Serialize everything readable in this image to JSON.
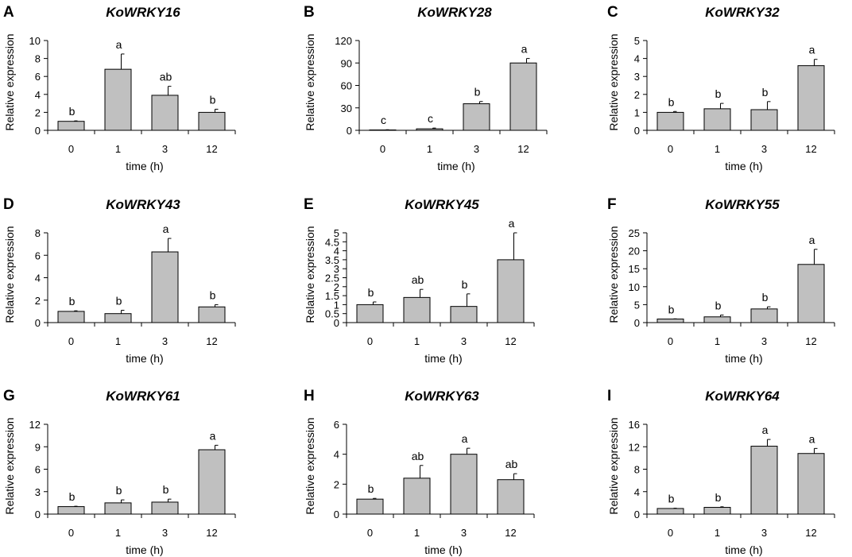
{
  "chart_data": [
    {
      "type": "bar",
      "letter": "A",
      "title": "KoWRKY16",
      "categories": [
        "0",
        "1",
        "3",
        "12"
      ],
      "values": [
        1.0,
        6.8,
        3.9,
        2.0
      ],
      "errors": [
        0.05,
        1.7,
        1.0,
        0.35
      ],
      "labels": [
        "b",
        "a",
        "ab",
        "b"
      ],
      "ylim": [
        0,
        10
      ],
      "yticks": [
        "0",
        "2",
        "4",
        "6",
        "8",
        "10"
      ],
      "xlabel": "time (h)",
      "ylabel": "Relative expression"
    },
    {
      "type": "bar",
      "letter": "B",
      "title": "KoWRKY28",
      "categories": [
        "0",
        "1",
        "3",
        "12"
      ],
      "values": [
        0.5,
        2.0,
        35.5,
        90.0
      ],
      "errors": [
        0.3,
        1.0,
        3.0,
        6.0
      ],
      "labels": [
        "c",
        "c",
        "b",
        "a"
      ],
      "ylim": [
        0,
        120
      ],
      "yticks": [
        "0",
        "30",
        "60",
        "90",
        "120"
      ],
      "xlabel": "time (h)",
      "ylabel": "Relative expression"
    },
    {
      "type": "bar",
      "letter": "C",
      "title": "KoWRKY32",
      "categories": [
        "0",
        "1",
        "3",
        "12"
      ],
      "values": [
        1.0,
        1.2,
        1.15,
        3.6
      ],
      "errors": [
        0.05,
        0.3,
        0.45,
        0.35
      ],
      "labels": [
        "b",
        "b",
        "b",
        "a"
      ],
      "ylim": [
        0,
        5
      ],
      "yticks": [
        "0",
        "1",
        "2",
        "3",
        "4",
        "5"
      ],
      "xlabel": "time (h)",
      "ylabel": "Relative expression"
    },
    {
      "type": "bar",
      "letter": "D",
      "title": "KoWRKY43",
      "categories": [
        "0",
        "1",
        "3",
        "12"
      ],
      "values": [
        1.0,
        0.8,
        6.3,
        1.4
      ],
      "errors": [
        0.05,
        0.3,
        1.2,
        0.2
      ],
      "labels": [
        "b",
        "b",
        "a",
        "b"
      ],
      "ylim": [
        0,
        8
      ],
      "yticks": [
        "0",
        "2",
        "4",
        "6",
        "8"
      ],
      "xlabel": "time (h)",
      "ylabel": "Relative expression"
    },
    {
      "type": "bar",
      "letter": "E",
      "title": "KoWRKY45",
      "categories": [
        "0",
        "1",
        "3",
        "12"
      ],
      "values": [
        1.0,
        1.4,
        0.9,
        3.5
      ],
      "errors": [
        0.15,
        0.45,
        0.7,
        1.5
      ],
      "labels": [
        "b",
        "ab",
        "b",
        "a"
      ],
      "ylim": [
        0,
        5
      ],
      "yticks": [
        "0",
        "0.5",
        "1",
        "1.5",
        "2",
        "2.5",
        "3",
        "3.5",
        "4",
        "4.5",
        "5"
      ],
      "xlabel": "time (h)",
      "ylabel": "Relative expression"
    },
    {
      "type": "bar",
      "letter": "F",
      "title": "KoWRKY55",
      "categories": [
        "0",
        "1",
        "3",
        "12"
      ],
      "values": [
        1.0,
        1.6,
        3.8,
        16.2
      ],
      "errors": [
        0.05,
        0.5,
        0.6,
        4.2
      ],
      "labels": [
        "b",
        "b",
        "b",
        "a"
      ],
      "ylim": [
        0,
        25
      ],
      "yticks": [
        "0",
        "5",
        "10",
        "15",
        "20",
        "25"
      ],
      "xlabel": "time (h)",
      "ylabel": "Relative expression"
    },
    {
      "type": "bar",
      "letter": "G",
      "title": "KoWRKY61",
      "categories": [
        "0",
        "1",
        "3",
        "12"
      ],
      "values": [
        1.0,
        1.5,
        1.6,
        8.6
      ],
      "errors": [
        0.05,
        0.4,
        0.4,
        0.6
      ],
      "labels": [
        "b",
        "b",
        "b",
        "a"
      ],
      "ylim": [
        0,
        12
      ],
      "yticks": [
        "0",
        "3",
        "6",
        "9",
        "12"
      ],
      "xlabel": "time (h)",
      "ylabel": "Relative expression"
    },
    {
      "type": "bar",
      "letter": "H",
      "title": "KoWRKY63",
      "categories": [
        "0",
        "1",
        "3",
        "12"
      ],
      "values": [
        1.0,
        2.4,
        4.0,
        2.3
      ],
      "errors": [
        0.05,
        0.85,
        0.4,
        0.4
      ],
      "labels": [
        "b",
        "ab",
        "a",
        "ab"
      ],
      "ylim": [
        0,
        6
      ],
      "yticks": [
        "0",
        "2",
        "4",
        "6"
      ],
      "xlabel": "time (h)",
      "ylabel": "Relative expression"
    },
    {
      "type": "bar",
      "letter": "I",
      "title": "KoWRKY64",
      "categories": [
        "0",
        "1",
        "3",
        "12"
      ],
      "values": [
        1.0,
        1.2,
        12.1,
        10.8
      ],
      "errors": [
        0.05,
        0.1,
        1.2,
        0.9
      ],
      "labels": [
        "b",
        "b",
        "a",
        "a"
      ],
      "ylim": [
        0,
        16
      ],
      "yticks": [
        "0",
        "4",
        "8",
        "12",
        "16"
      ],
      "xlabel": "time (h)",
      "ylabel": "Relative expression"
    }
  ]
}
